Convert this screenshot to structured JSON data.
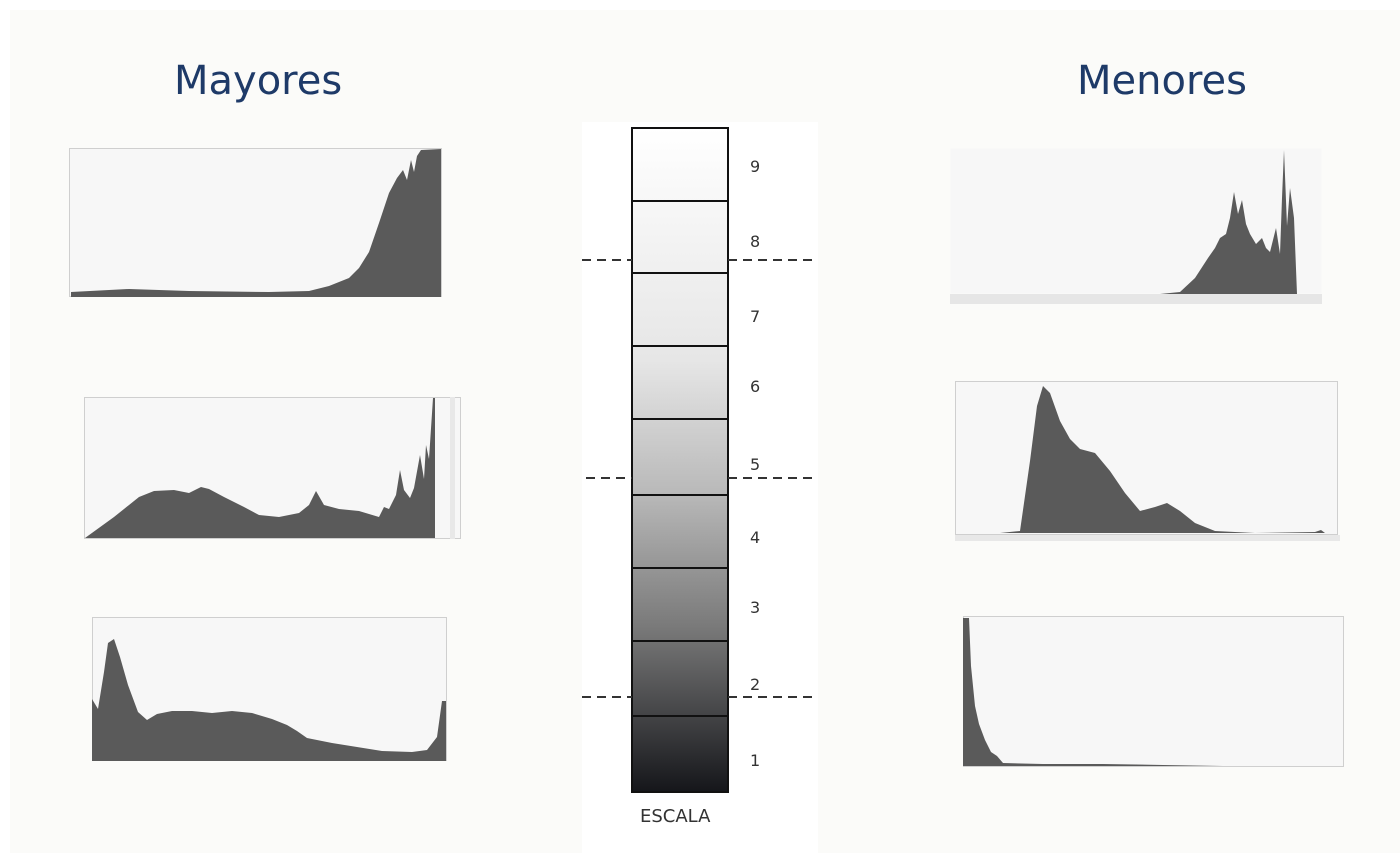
{
  "titles": {
    "left": "Mayores",
    "right": "Menores"
  },
  "scale": {
    "caption": "ESCALA",
    "steps": [
      "1",
      "2",
      "3",
      "4",
      "5",
      "6",
      "7",
      "8",
      "9"
    ],
    "colors": {
      "top": "#ffffff",
      "bottom": "#15161a",
      "hist_fill": "#5a5a5a",
      "frame": "#cfcfcf",
      "title": "#1e3a68"
    }
  }
}
